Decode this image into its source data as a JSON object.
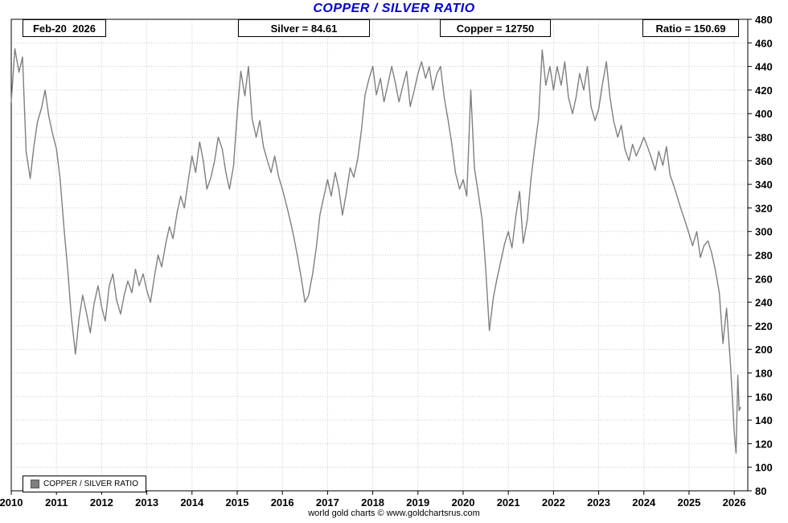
{
  "title": "COPPER / SILVER RATIO",
  "header": {
    "date": "Feb-20  2026",
    "silver": "Silver = 84.61",
    "copper": "Copper = 12750",
    "ratio": "Ratio = 150.69"
  },
  "legend_label": "COPPER / SILVER RATIO",
  "footer": "world gold charts © www.goldchartsrus.com",
  "colors": {
    "title": "#0000dd",
    "line": "#7f7f7f",
    "grid": "#c8c8c8"
  },
  "chart_data": {
    "type": "line",
    "title": "COPPER / SILVER RATIO",
    "xlabel": "",
    "ylabel": "",
    "xlim": [
      2010,
      2026.3
    ],
    "ylim": [
      80,
      480
    ],
    "ytick_step": 20,
    "xticks": [
      2010,
      2011,
      2012,
      2013,
      2014,
      2015,
      2016,
      2017,
      2018,
      2019,
      2020,
      2021,
      2022,
      2023,
      2024,
      2025,
      2026
    ],
    "grid": true,
    "legend_position": "bottom-left",
    "series": [
      {
        "name": "COPPER / SILVER RATIO",
        "color": "#7f7f7f",
        "points": [
          [
            2010.0,
            410
          ],
          [
            2010.08,
            455
          ],
          [
            2010.17,
            435
          ],
          [
            2010.25,
            448
          ],
          [
            2010.33,
            368
          ],
          [
            2010.42,
            345
          ],
          [
            2010.5,
            372
          ],
          [
            2010.58,
            393
          ],
          [
            2010.67,
            405
          ],
          [
            2010.75,
            420
          ],
          [
            2010.83,
            398
          ],
          [
            2010.92,
            382
          ],
          [
            2011.0,
            370
          ],
          [
            2011.08,
            345
          ],
          [
            2011.17,
            302
          ],
          [
            2011.25,
            268
          ],
          [
            2011.33,
            228
          ],
          [
            2011.42,
            196
          ],
          [
            2011.5,
            226
          ],
          [
            2011.58,
            246
          ],
          [
            2011.67,
            230
          ],
          [
            2011.75,
            214
          ],
          [
            2011.83,
            238
          ],
          [
            2011.92,
            254
          ],
          [
            2012.0,
            236
          ],
          [
            2012.08,
            224
          ],
          [
            2012.17,
            254
          ],
          [
            2012.25,
            264
          ],
          [
            2012.33,
            242
          ],
          [
            2012.42,
            230
          ],
          [
            2012.5,
            246
          ],
          [
            2012.58,
            258
          ],
          [
            2012.67,
            248
          ],
          [
            2012.75,
            268
          ],
          [
            2012.83,
            254
          ],
          [
            2012.92,
            264
          ],
          [
            2013.0,
            250
          ],
          [
            2013.08,
            240
          ],
          [
            2013.17,
            262
          ],
          [
            2013.25,
            280
          ],
          [
            2013.33,
            270
          ],
          [
            2013.42,
            290
          ],
          [
            2013.5,
            304
          ],
          [
            2013.58,
            294
          ],
          [
            2013.67,
            316
          ],
          [
            2013.75,
            330
          ],
          [
            2013.83,
            320
          ],
          [
            2013.92,
            344
          ],
          [
            2014.0,
            364
          ],
          [
            2014.08,
            350
          ],
          [
            2014.17,
            376
          ],
          [
            2014.25,
            360
          ],
          [
            2014.33,
            336
          ],
          [
            2014.42,
            346
          ],
          [
            2014.5,
            360
          ],
          [
            2014.58,
            380
          ],
          [
            2014.67,
            370
          ],
          [
            2014.75,
            350
          ],
          [
            2014.83,
            336
          ],
          [
            2014.92,
            356
          ],
          [
            2015.0,
            400
          ],
          [
            2015.08,
            436
          ],
          [
            2015.17,
            415
          ],
          [
            2015.25,
            440
          ],
          [
            2015.33,
            396
          ],
          [
            2015.42,
            380
          ],
          [
            2015.5,
            394
          ],
          [
            2015.58,
            372
          ],
          [
            2015.67,
            360
          ],
          [
            2015.75,
            350
          ],
          [
            2015.83,
            364
          ],
          [
            2015.92,
            346
          ],
          [
            2016.0,
            336
          ],
          [
            2016.08,
            324
          ],
          [
            2016.17,
            310
          ],
          [
            2016.25,
            296
          ],
          [
            2016.33,
            280
          ],
          [
            2016.42,
            260
          ],
          [
            2016.5,
            240
          ],
          [
            2016.58,
            246
          ],
          [
            2016.67,
            264
          ],
          [
            2016.75,
            286
          ],
          [
            2016.83,
            314
          ],
          [
            2016.92,
            330
          ],
          [
            2017.0,
            344
          ],
          [
            2017.08,
            330
          ],
          [
            2017.17,
            350
          ],
          [
            2017.25,
            336
          ],
          [
            2017.33,
            314
          ],
          [
            2017.42,
            334
          ],
          [
            2017.5,
            354
          ],
          [
            2017.58,
            346
          ],
          [
            2017.67,
            362
          ],
          [
            2017.75,
            386
          ],
          [
            2017.83,
            416
          ],
          [
            2017.92,
            430
          ],
          [
            2018.0,
            440
          ],
          [
            2018.08,
            416
          ],
          [
            2018.17,
            430
          ],
          [
            2018.25,
            410
          ],
          [
            2018.33,
            424
          ],
          [
            2018.42,
            440
          ],
          [
            2018.5,
            426
          ],
          [
            2018.58,
            410
          ],
          [
            2018.67,
            424
          ],
          [
            2018.75,
            436
          ],
          [
            2018.83,
            406
          ],
          [
            2018.92,
            420
          ],
          [
            2019.0,
            434
          ],
          [
            2019.08,
            444
          ],
          [
            2019.17,
            430
          ],
          [
            2019.25,
            440
          ],
          [
            2019.33,
            420
          ],
          [
            2019.42,
            434
          ],
          [
            2019.5,
            440
          ],
          [
            2019.58,
            414
          ],
          [
            2019.67,
            394
          ],
          [
            2019.75,
            374
          ],
          [
            2019.83,
            350
          ],
          [
            2019.92,
            336
          ],
          [
            2020.0,
            344
          ],
          [
            2020.08,
            330
          ],
          [
            2020.17,
            420
          ],
          [
            2020.25,
            354
          ],
          [
            2020.33,
            334
          ],
          [
            2020.42,
            310
          ],
          [
            2020.5,
            268
          ],
          [
            2020.58,
            216
          ],
          [
            2020.67,
            244
          ],
          [
            2020.75,
            260
          ],
          [
            2020.83,
            274
          ],
          [
            2020.92,
            290
          ],
          [
            2021.0,
            300
          ],
          [
            2021.08,
            286
          ],
          [
            2021.17,
            314
          ],
          [
            2021.25,
            334
          ],
          [
            2021.33,
            290
          ],
          [
            2021.42,
            310
          ],
          [
            2021.5,
            344
          ],
          [
            2021.58,
            370
          ],
          [
            2021.67,
            396
          ],
          [
            2021.75,
            454
          ],
          [
            2021.83,
            424
          ],
          [
            2021.92,
            440
          ],
          [
            2022.0,
            420
          ],
          [
            2022.08,
            440
          ],
          [
            2022.17,
            424
          ],
          [
            2022.25,
            444
          ],
          [
            2022.33,
            414
          ],
          [
            2022.42,
            400
          ],
          [
            2022.5,
            414
          ],
          [
            2022.58,
            434
          ],
          [
            2022.67,
            420
          ],
          [
            2022.75,
            440
          ],
          [
            2022.83,
            406
          ],
          [
            2022.92,
            394
          ],
          [
            2023.0,
            404
          ],
          [
            2023.08,
            424
          ],
          [
            2023.17,
            444
          ],
          [
            2023.25,
            414
          ],
          [
            2023.33,
            394
          ],
          [
            2023.42,
            380
          ],
          [
            2023.5,
            390
          ],
          [
            2023.58,
            370
          ],
          [
            2023.67,
            360
          ],
          [
            2023.75,
            374
          ],
          [
            2023.83,
            364
          ],
          [
            2023.92,
            372
          ],
          [
            2024.0,
            380
          ],
          [
            2024.08,
            372
          ],
          [
            2024.17,
            362
          ],
          [
            2024.25,
            352
          ],
          [
            2024.33,
            368
          ],
          [
            2024.42,
            356
          ],
          [
            2024.5,
            372
          ],
          [
            2024.58,
            348
          ],
          [
            2024.67,
            338
          ],
          [
            2024.75,
            328
          ],
          [
            2024.83,
            318
          ],
          [
            2024.92,
            308
          ],
          [
            2025.0,
            298
          ],
          [
            2025.08,
            288
          ],
          [
            2025.17,
            300
          ],
          [
            2025.25,
            278
          ],
          [
            2025.33,
            288
          ],
          [
            2025.42,
            292
          ],
          [
            2025.5,
            282
          ],
          [
            2025.58,
            268
          ],
          [
            2025.67,
            248
          ],
          [
            2025.75,
            205
          ],
          [
            2025.83,
            235
          ],
          [
            2025.92,
            186
          ],
          [
            2026.0,
            130
          ],
          [
            2026.04,
            112
          ],
          [
            2026.08,
            178
          ],
          [
            2026.11,
            148
          ],
          [
            2026.14,
            150.69
          ]
        ]
      }
    ]
  }
}
